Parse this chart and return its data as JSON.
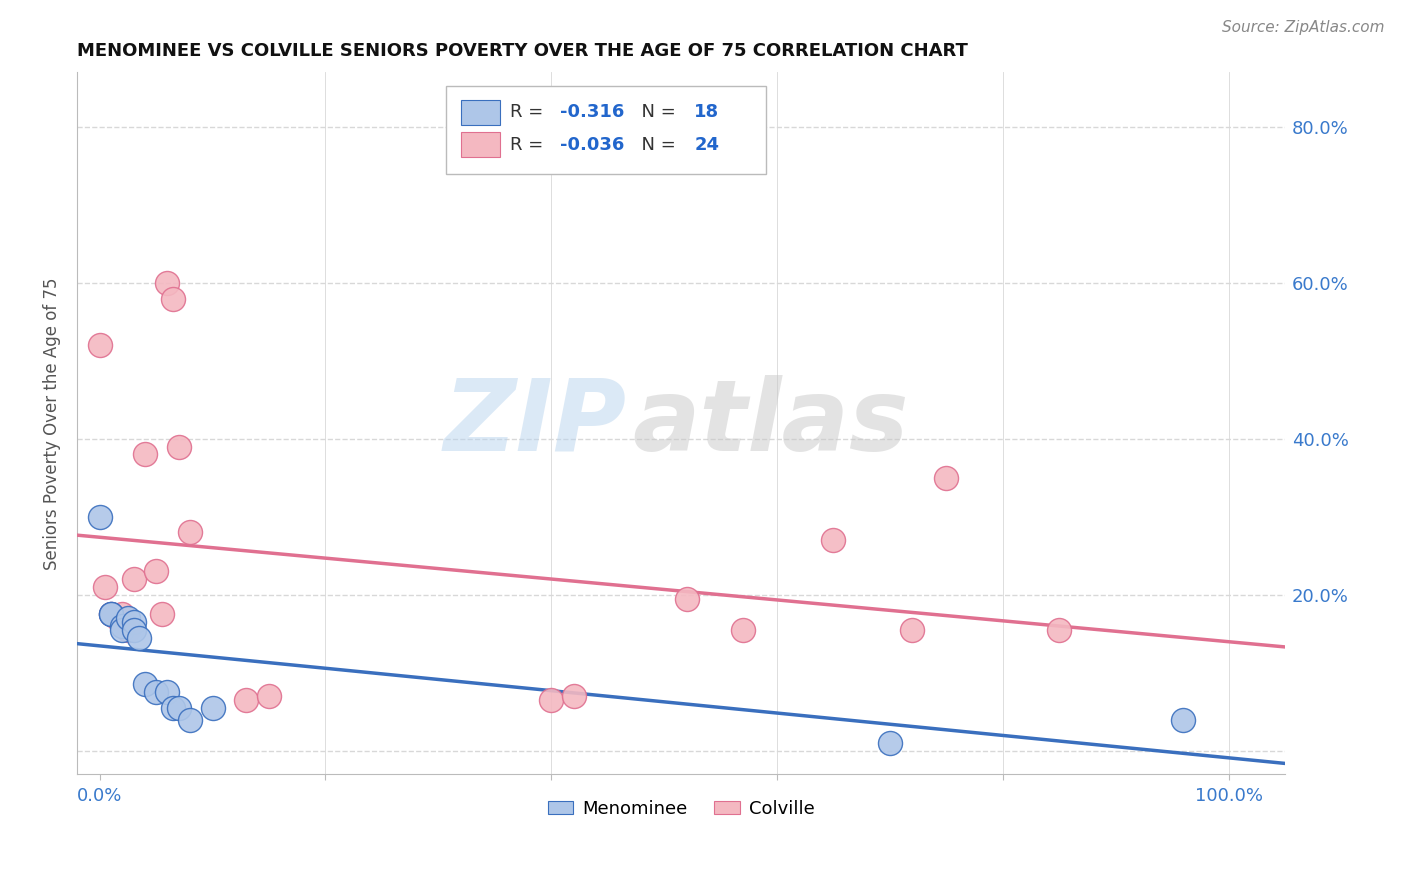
{
  "title": "MENOMINEE VS COLVILLE SENIORS POVERTY OVER THE AGE OF 75 CORRELATION CHART",
  "source": "Source: ZipAtlas.com",
  "ylabel": "Seniors Poverty Over the Age of 75",
  "xlim": [
    -0.02,
    1.05
  ],
  "ylim": [
    -0.03,
    0.87
  ],
  "xticks": [
    0.0,
    0.2,
    0.4,
    0.6,
    0.8,
    1.0
  ],
  "xticklabels": [
    "0.0%",
    "",
    "",
    "",
    "",
    "100.0%"
  ],
  "ytick_positions": [
    0.0,
    0.2,
    0.4,
    0.6,
    0.8
  ],
  "ytick_labels_right": [
    "",
    "20.0%",
    "40.0%",
    "60.0%",
    "80.0%"
  ],
  "menominee_color": "#aec6e8",
  "colville_color": "#f4b8c1",
  "menominee_line_color": "#3a6fbe",
  "colville_line_color": "#e07090",
  "menominee_R": -0.316,
  "menominee_N": 18,
  "colville_R": -0.036,
  "colville_N": 24,
  "menominee_points_x": [
    0.0,
    0.01,
    0.01,
    0.02,
    0.02,
    0.025,
    0.03,
    0.03,
    0.035,
    0.04,
    0.05,
    0.06,
    0.065,
    0.07,
    0.08,
    0.1,
    0.7,
    0.96
  ],
  "menominee_points_y": [
    0.3,
    0.175,
    0.175,
    0.16,
    0.155,
    0.17,
    0.165,
    0.155,
    0.145,
    0.085,
    0.075,
    0.075,
    0.055,
    0.055,
    0.04,
    0.055,
    0.01,
    0.04
  ],
  "colville_points_x": [
    0.0,
    0.005,
    0.01,
    0.015,
    0.02,
    0.025,
    0.03,
    0.04,
    0.05,
    0.055,
    0.06,
    0.065,
    0.07,
    0.08,
    0.13,
    0.15,
    0.4,
    0.42,
    0.52,
    0.57,
    0.65,
    0.72,
    0.75,
    0.85
  ],
  "colville_points_y": [
    0.52,
    0.21,
    0.175,
    0.17,
    0.175,
    0.155,
    0.22,
    0.38,
    0.23,
    0.175,
    0.6,
    0.58,
    0.39,
    0.28,
    0.065,
    0.07,
    0.065,
    0.07,
    0.195,
    0.155,
    0.27,
    0.155,
    0.35,
    0.155
  ],
  "watermark_zip": "ZIP",
  "watermark_atlas": "atlas",
  "background_color": "#ffffff",
  "grid_color": "#d8d8d8"
}
